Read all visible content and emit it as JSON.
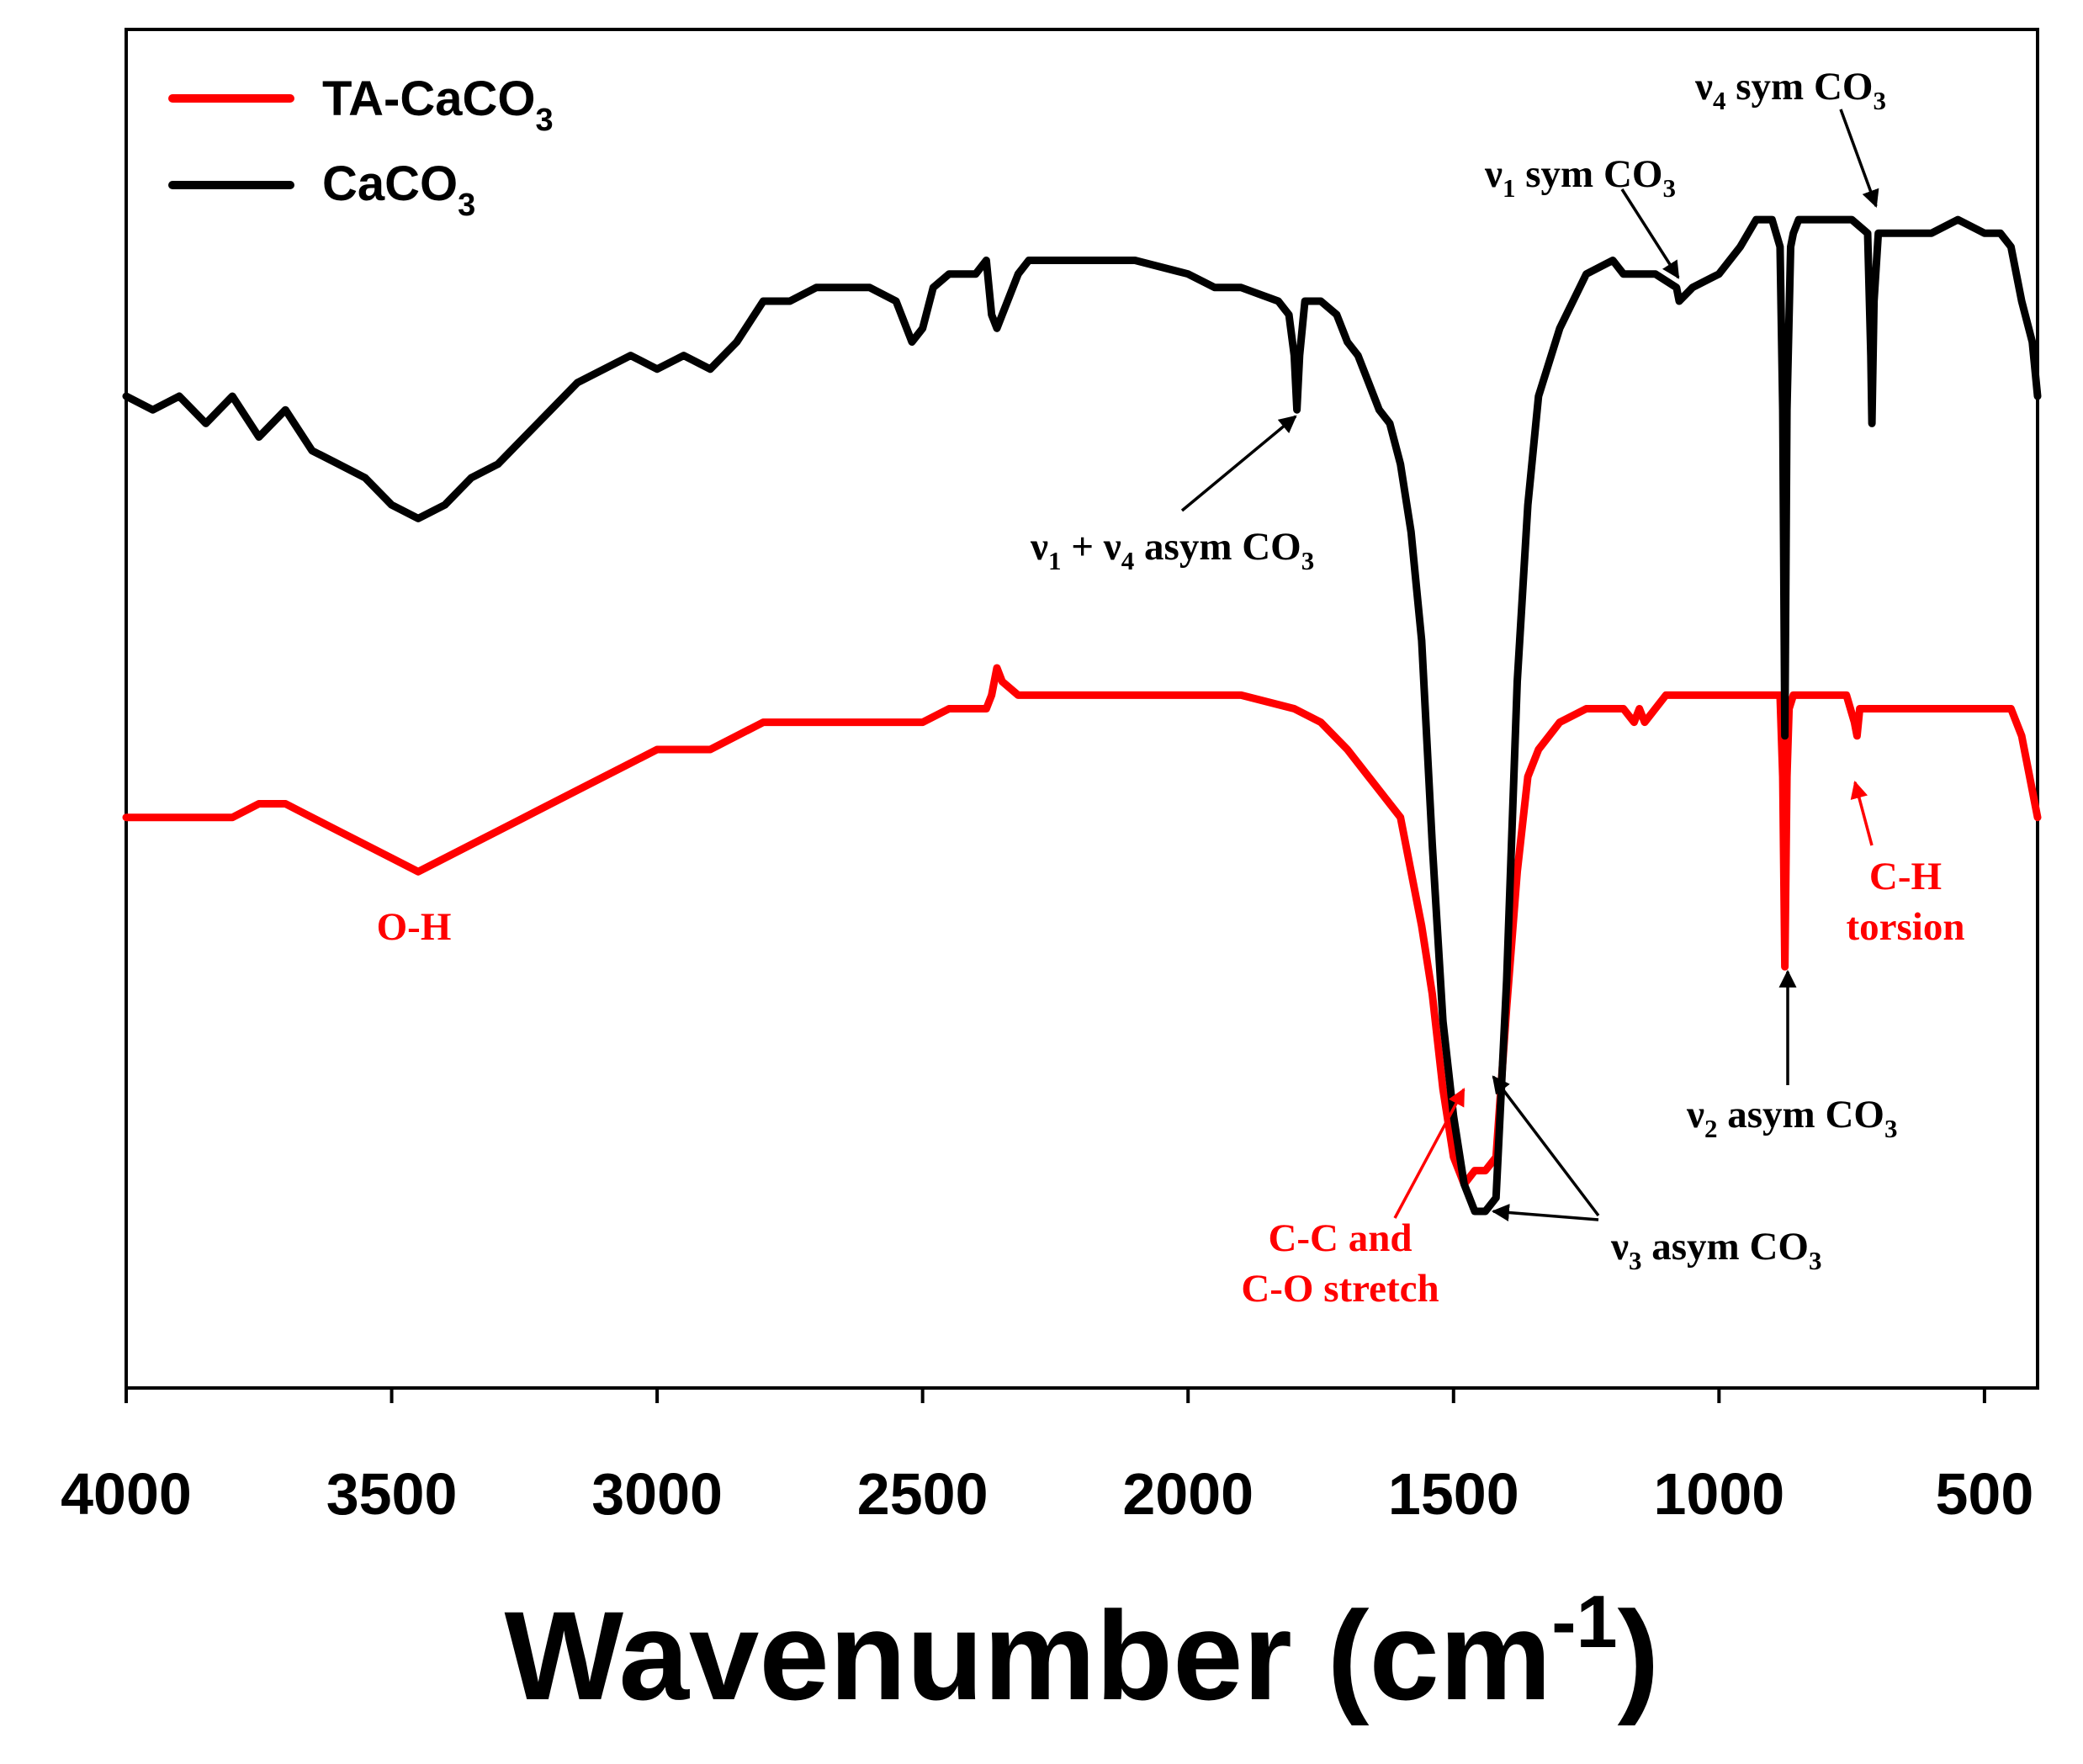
{
  "chart_data": {
    "type": "line",
    "title": "",
    "xlabel": "Wavenumber (cm",
    "xlabel_sup": "-1",
    "xlabel_close": ")",
    "ylabel": "",
    "xlim": [
      4000,
      400
    ],
    "ylim": [
      0,
      100
    ],
    "x_ticks": [
      4000,
      3500,
      3000,
      2500,
      2000,
      1500,
      1000,
      500
    ],
    "x_tick_labels": [
      "4000",
      "3500",
      "3000",
      "2500",
      "2000",
      "1500",
      "1000",
      "500"
    ],
    "legend": {
      "position": "top-left",
      "entries": [
        {
          "label": "TA-CaCO",
          "sub": "3",
          "color": "#ff0000"
        },
        {
          "label": "CaCO",
          "sub": "3",
          "color": "#000000"
        }
      ]
    },
    "series": [
      {
        "name": "CaCO3",
        "color": "#000000",
        "points": [
          [
            4000,
            73
          ],
          [
            3950,
            72
          ],
          [
            3900,
            73
          ],
          [
            3850,
            71
          ],
          [
            3800,
            73
          ],
          [
            3750,
            70
          ],
          [
            3700,
            72
          ],
          [
            3650,
            69
          ],
          [
            3600,
            68
          ],
          [
            3550,
            67
          ],
          [
            3500,
            65
          ],
          [
            3450,
            64
          ],
          [
            3400,
            65
          ],
          [
            3350,
            67
          ],
          [
            3300,
            68
          ],
          [
            3250,
            70
          ],
          [
            3200,
            72
          ],
          [
            3150,
            74
          ],
          [
            3100,
            75
          ],
          [
            3050,
            76
          ],
          [
            3000,
            75
          ],
          [
            2950,
            76
          ],
          [
            2900,
            75
          ],
          [
            2850,
            77
          ],
          [
            2800,
            80
          ],
          [
            2750,
            80
          ],
          [
            2700,
            81
          ],
          [
            2650,
            81
          ],
          [
            2600,
            81
          ],
          [
            2550,
            80
          ],
          [
            2520,
            77
          ],
          [
            2500,
            78
          ],
          [
            2480,
            81
          ],
          [
            2450,
            82
          ],
          [
            2400,
            82
          ],
          [
            2380,
            83
          ],
          [
            2370,
            79
          ],
          [
            2360,
            78
          ],
          [
            2350,
            79
          ],
          [
            2320,
            82
          ],
          [
            2300,
            83
          ],
          [
            2250,
            83
          ],
          [
            2200,
            83
          ],
          [
            2100,
            83
          ],
          [
            2000,
            82
          ],
          [
            1950,
            81
          ],
          [
            1900,
            81
          ],
          [
            1830,
            80
          ],
          [
            1810,
            79
          ],
          [
            1800,
            76
          ],
          [
            1795,
            72
          ],
          [
            1790,
            76
          ],
          [
            1780,
            80
          ],
          [
            1750,
            80
          ],
          [
            1720,
            79
          ],
          [
            1700,
            77
          ],
          [
            1680,
            76
          ],
          [
            1660,
            74
          ],
          [
            1640,
            72
          ],
          [
            1620,
            71
          ],
          [
            1600,
            68
          ],
          [
            1580,
            63
          ],
          [
            1560,
            55
          ],
          [
            1540,
            40
          ],
          [
            1520,
            27
          ],
          [
            1500,
            20
          ],
          [
            1480,
            15
          ],
          [
            1460,
            13
          ],
          [
            1440,
            13
          ],
          [
            1420,
            14
          ],
          [
            1400,
            30
          ],
          [
            1380,
            52
          ],
          [
            1360,
            65
          ],
          [
            1340,
            73
          ],
          [
            1300,
            78
          ],
          [
            1250,
            82
          ],
          [
            1200,
            83
          ],
          [
            1180,
            82
          ],
          [
            1160,
            82
          ],
          [
            1140,
            82
          ],
          [
            1120,
            82
          ],
          [
            1080,
            81
          ],
          [
            1075,
            80
          ],
          [
            1050,
            81
          ],
          [
            1000,
            82
          ],
          [
            960,
            84
          ],
          [
            930,
            86
          ],
          [
            900,
            86
          ],
          [
            885,
            84
          ],
          [
            880,
            72
          ],
          [
            876,
            48
          ],
          [
            872,
            72
          ],
          [
            865,
            84
          ],
          [
            860,
            85
          ],
          [
            850,
            86
          ],
          [
            800,
            86
          ],
          [
            750,
            86
          ],
          [
            720,
            85
          ],
          [
            714,
            76
          ],
          [
            712,
            71
          ],
          [
            708,
            80
          ],
          [
            700,
            85
          ],
          [
            650,
            85
          ],
          [
            600,
            85
          ],
          [
            550,
            86
          ],
          [
            500,
            85
          ],
          [
            470,
            85
          ],
          [
            450,
            84
          ],
          [
            430,
            80
          ],
          [
            410,
            77
          ],
          [
            400,
            73
          ]
        ]
      },
      {
        "name": "TA-CaCO3",
        "color": "#ff0000",
        "points": [
          [
            4000,
            42
          ],
          [
            3950,
            42
          ],
          [
            3900,
            42
          ],
          [
            3850,
            42
          ],
          [
            3800,
            42
          ],
          [
            3750,
            43
          ],
          [
            3700,
            43
          ],
          [
            3650,
            42
          ],
          [
            3600,
            41
          ],
          [
            3550,
            40
          ],
          [
            3500,
            39
          ],
          [
            3450,
            38
          ],
          [
            3400,
            39
          ],
          [
            3350,
            40
          ],
          [
            3300,
            41
          ],
          [
            3250,
            42
          ],
          [
            3200,
            43
          ],
          [
            3150,
            44
          ],
          [
            3100,
            45
          ],
          [
            3050,
            46
          ],
          [
            3000,
            47
          ],
          [
            2950,
            47
          ],
          [
            2900,
            47
          ],
          [
            2850,
            48
          ],
          [
            2800,
            49
          ],
          [
            2750,
            49
          ],
          [
            2700,
            49
          ],
          [
            2650,
            49
          ],
          [
            2600,
            49
          ],
          [
            2550,
            49
          ],
          [
            2500,
            49
          ],
          [
            2450,
            50
          ],
          [
            2400,
            50
          ],
          [
            2380,
            50
          ],
          [
            2370,
            51
          ],
          [
            2360,
            53
          ],
          [
            2350,
            52
          ],
          [
            2320,
            51
          ],
          [
            2300,
            51
          ],
          [
            2250,
            51
          ],
          [
            2200,
            51
          ],
          [
            2100,
            51
          ],
          [
            2000,
            51
          ],
          [
            1950,
            51
          ],
          [
            1900,
            51
          ],
          [
            1800,
            50
          ],
          [
            1750,
            49
          ],
          [
            1700,
            47
          ],
          [
            1660,
            45
          ],
          [
            1640,
            44
          ],
          [
            1620,
            43
          ],
          [
            1600,
            42
          ],
          [
            1580,
            38
          ],
          [
            1560,
            34
          ],
          [
            1540,
            29
          ],
          [
            1520,
            22
          ],
          [
            1500,
            17
          ],
          [
            1490,
            16
          ],
          [
            1480,
            15
          ],
          [
            1460,
            16
          ],
          [
            1440,
            16
          ],
          [
            1420,
            17
          ],
          [
            1400,
            28
          ],
          [
            1380,
            38
          ],
          [
            1360,
            45
          ],
          [
            1340,
            47
          ],
          [
            1300,
            49
          ],
          [
            1250,
            50
          ],
          [
            1200,
            50
          ],
          [
            1180,
            50
          ],
          [
            1160,
            49
          ],
          [
            1150,
            50
          ],
          [
            1140,
            49
          ],
          [
            1120,
            50
          ],
          [
            1100,
            51
          ],
          [
            1050,
            51
          ],
          [
            1000,
            51
          ],
          [
            960,
            51
          ],
          [
            930,
            51
          ],
          [
            900,
            51
          ],
          [
            885,
            51
          ],
          [
            880,
            45
          ],
          [
            876,
            31
          ],
          [
            872,
            45
          ],
          [
            868,
            50
          ],
          [
            860,
            51
          ],
          [
            850,
            51
          ],
          [
            800,
            51
          ],
          [
            760,
            51
          ],
          [
            745,
            49
          ],
          [
            740,
            48
          ],
          [
            735,
            50
          ],
          [
            720,
            50
          ],
          [
            700,
            50
          ],
          [
            650,
            50
          ],
          [
            600,
            50
          ],
          [
            550,
            50
          ],
          [
            500,
            50
          ],
          [
            470,
            50
          ],
          [
            450,
            50
          ],
          [
            430,
            48
          ],
          [
            410,
            44
          ],
          [
            400,
            42
          ]
        ]
      }
    ],
    "annotations": [
      {
        "id": "v1v4",
        "color": "#000000",
        "parts": [
          [
            "ν",
            ""
          ],
          [
            "1",
            "sub"
          ],
          [
            " + ν",
            ""
          ],
          [
            "4",
            "sub"
          ],
          [
            " asym CO",
            ""
          ],
          [
            "3",
            "sub"
          ]
        ]
      },
      {
        "id": "v1sym",
        "color": "#000000",
        "parts": [
          [
            "ν",
            ""
          ],
          [
            "1",
            "sub"
          ],
          [
            " sym CO",
            ""
          ],
          [
            "3",
            "sub"
          ]
        ]
      },
      {
        "id": "v4sym",
        "color": "#000000",
        "parts": [
          [
            "ν",
            ""
          ],
          [
            "4",
            "sub"
          ],
          [
            " sym CO",
            ""
          ],
          [
            "3",
            "sub"
          ]
        ]
      },
      {
        "id": "v2asym",
        "color": "#000000",
        "parts": [
          [
            "ν",
            ""
          ],
          [
            "2",
            "sub"
          ],
          [
            " asym CO",
            ""
          ],
          [
            "3",
            "sub"
          ]
        ]
      },
      {
        "id": "v3asym",
        "color": "#000000",
        "parts": [
          [
            "ν",
            ""
          ],
          [
            "3",
            "sub"
          ],
          [
            " asym CO",
            ""
          ],
          [
            "3",
            "sub"
          ]
        ]
      },
      {
        "id": "oh",
        "color": "#ff0000",
        "parts": [
          [
            "O-H",
            ""
          ]
        ]
      },
      {
        "id": "ch1",
        "color": "#ff0000",
        "parts": [
          [
            "C-H",
            ""
          ]
        ]
      },
      {
        "id": "ch2",
        "color": "#ff0000",
        "parts": [
          [
            "torsion",
            ""
          ]
        ]
      },
      {
        "id": "cc1",
        "color": "#ff0000",
        "parts": [
          [
            "C-C and",
            ""
          ]
        ]
      },
      {
        "id": "cc2",
        "color": "#ff0000",
        "parts": [
          [
            "C-O stretch",
            ""
          ]
        ]
      }
    ]
  }
}
